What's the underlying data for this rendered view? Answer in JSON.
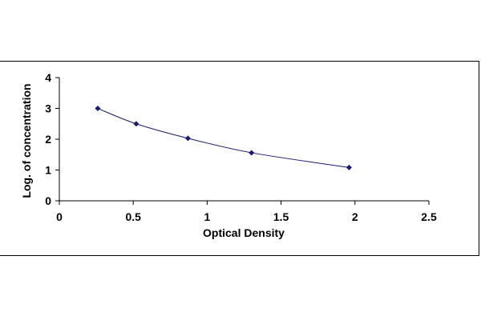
{
  "chart_data": {
    "type": "scatter",
    "xlabel": "Optical Density",
    "ylabel": "Log. of concentration",
    "xlim": [
      0,
      2.5
    ],
    "ylim": [
      0,
      4
    ],
    "xticks": [
      0,
      0.5,
      1,
      1.5,
      2,
      2.5
    ],
    "yticks": [
      0,
      1,
      2,
      3,
      4
    ],
    "xtick_labels": [
      "0",
      "0.5",
      "1",
      "1.5",
      "2",
      "2.5"
    ],
    "ytick_labels": [
      "0",
      "1",
      "2",
      "3",
      "4"
    ],
    "grid": false,
    "trendline": "smooth curve through points",
    "marker": "diamond",
    "colors": {
      "line": "#1a1a6e",
      "marker": "#1a1a6e",
      "axis": "#000000"
    },
    "series": [
      {
        "x": [
          0.26,
          0.52,
          0.87,
          1.3,
          1.96
        ],
        "y": [
          3.0,
          2.5,
          2.03,
          1.56,
          1.08
        ]
      }
    ]
  }
}
